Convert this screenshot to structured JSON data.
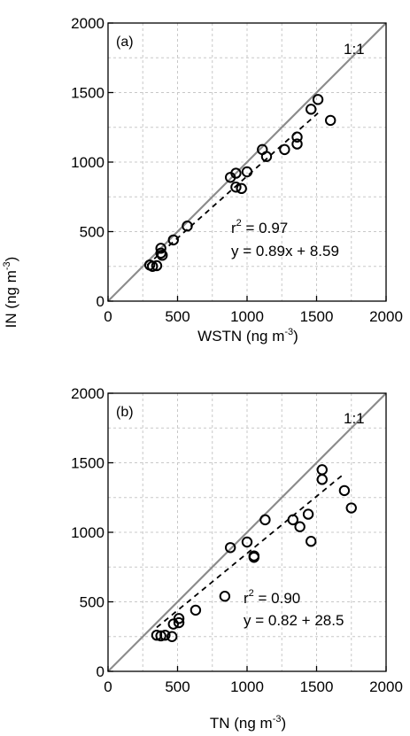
{
  "figure": {
    "shared_ylabel_main": "IN (ng m",
    "shared_ylabel_sup": "-3",
    "shared_ylabel_tail": ")"
  },
  "chart_data": [
    {
      "type": "scatter",
      "panel_label": "(a)",
      "xlabel_main": "WSTN (ng m",
      "xlabel_sup": "-3",
      "xlabel_tail": ")",
      "xlim": [
        0,
        2000
      ],
      "ylim": [
        0,
        2000
      ],
      "xticks": [
        0,
        500,
        1000,
        1500,
        2000
      ],
      "yticks": [
        0,
        500,
        1000,
        1500,
        2000
      ],
      "grid": true,
      "one_to_one_label": "1:1",
      "stat_r2_r": "r",
      "stat_r2_sup": "2",
      "stat_r2_value": " = 0.97",
      "stat_eq": "y = 0.89x + 8.59",
      "fit": {
        "slope": 0.89,
        "intercept": 8.59,
        "x_range": [
          280,
          1510
        ]
      },
      "points": [
        [
          300,
          260
        ],
        [
          320,
          250
        ],
        [
          350,
          255
        ],
        [
          380,
          380
        ],
        [
          380,
          345
        ],
        [
          390,
          330
        ],
        [
          470,
          440
        ],
        [
          570,
          540
        ],
        [
          880,
          890
        ],
        [
          920,
          920
        ],
        [
          920,
          820
        ],
        [
          960,
          810
        ],
        [
          1000,
          930
        ],
        [
          1110,
          1090
        ],
        [
          1140,
          1040
        ],
        [
          1270,
          1090
        ],
        [
          1360,
          1180
        ],
        [
          1360,
          1130
        ],
        [
          1460,
          1380
        ],
        [
          1510,
          1450
        ],
        [
          1600,
          1300
        ]
      ],
      "colors": {
        "points": "#000000",
        "identity": "#8c8c8c",
        "fit": "#000000",
        "grid": "#c8c8c8"
      }
    },
    {
      "type": "scatter",
      "panel_label": "(b)",
      "xlabel_main": "TN (ng m",
      "xlabel_sup": "-3",
      "xlabel_tail": ")",
      "xlim": [
        0,
        2000
      ],
      "ylim": [
        0,
        2000
      ],
      "xticks": [
        0,
        500,
        1000,
        1500,
        2000
      ],
      "yticks": [
        0,
        500,
        1000,
        1500,
        2000
      ],
      "grid": true,
      "one_to_one_label": "1:1",
      "stat_r2_r": "r",
      "stat_r2_sup": "2",
      "stat_r2_value": " = 0.90",
      "stat_eq": "y = 0.82 + 28.5",
      "fit": {
        "slope": 0.82,
        "intercept": 28.5,
        "x_range": [
          350,
          1700
        ]
      },
      "points": [
        [
          350,
          260
        ],
        [
          380,
          255
        ],
        [
          410,
          260
        ],
        [
          460,
          250
        ],
        [
          470,
          340
        ],
        [
          510,
          380
        ],
        [
          510,
          350
        ],
        [
          630,
          440
        ],
        [
          840,
          540
        ],
        [
          880,
          890
        ],
        [
          1000,
          930
        ],
        [
          1050,
          830
        ],
        [
          1050,
          820
        ],
        [
          1130,
          1090
        ],
        [
          1330,
          1090
        ],
        [
          1380,
          1040
        ],
        [
          1440,
          1130
        ],
        [
          1460,
          935
        ],
        [
          1540,
          1450
        ],
        [
          1540,
          1380
        ],
        [
          1700,
          1300
        ],
        [
          1750,
          1175
        ]
      ],
      "colors": {
        "points": "#000000",
        "identity": "#8c8c8c",
        "fit": "#000000",
        "grid": "#c8c8c8"
      }
    }
  ]
}
